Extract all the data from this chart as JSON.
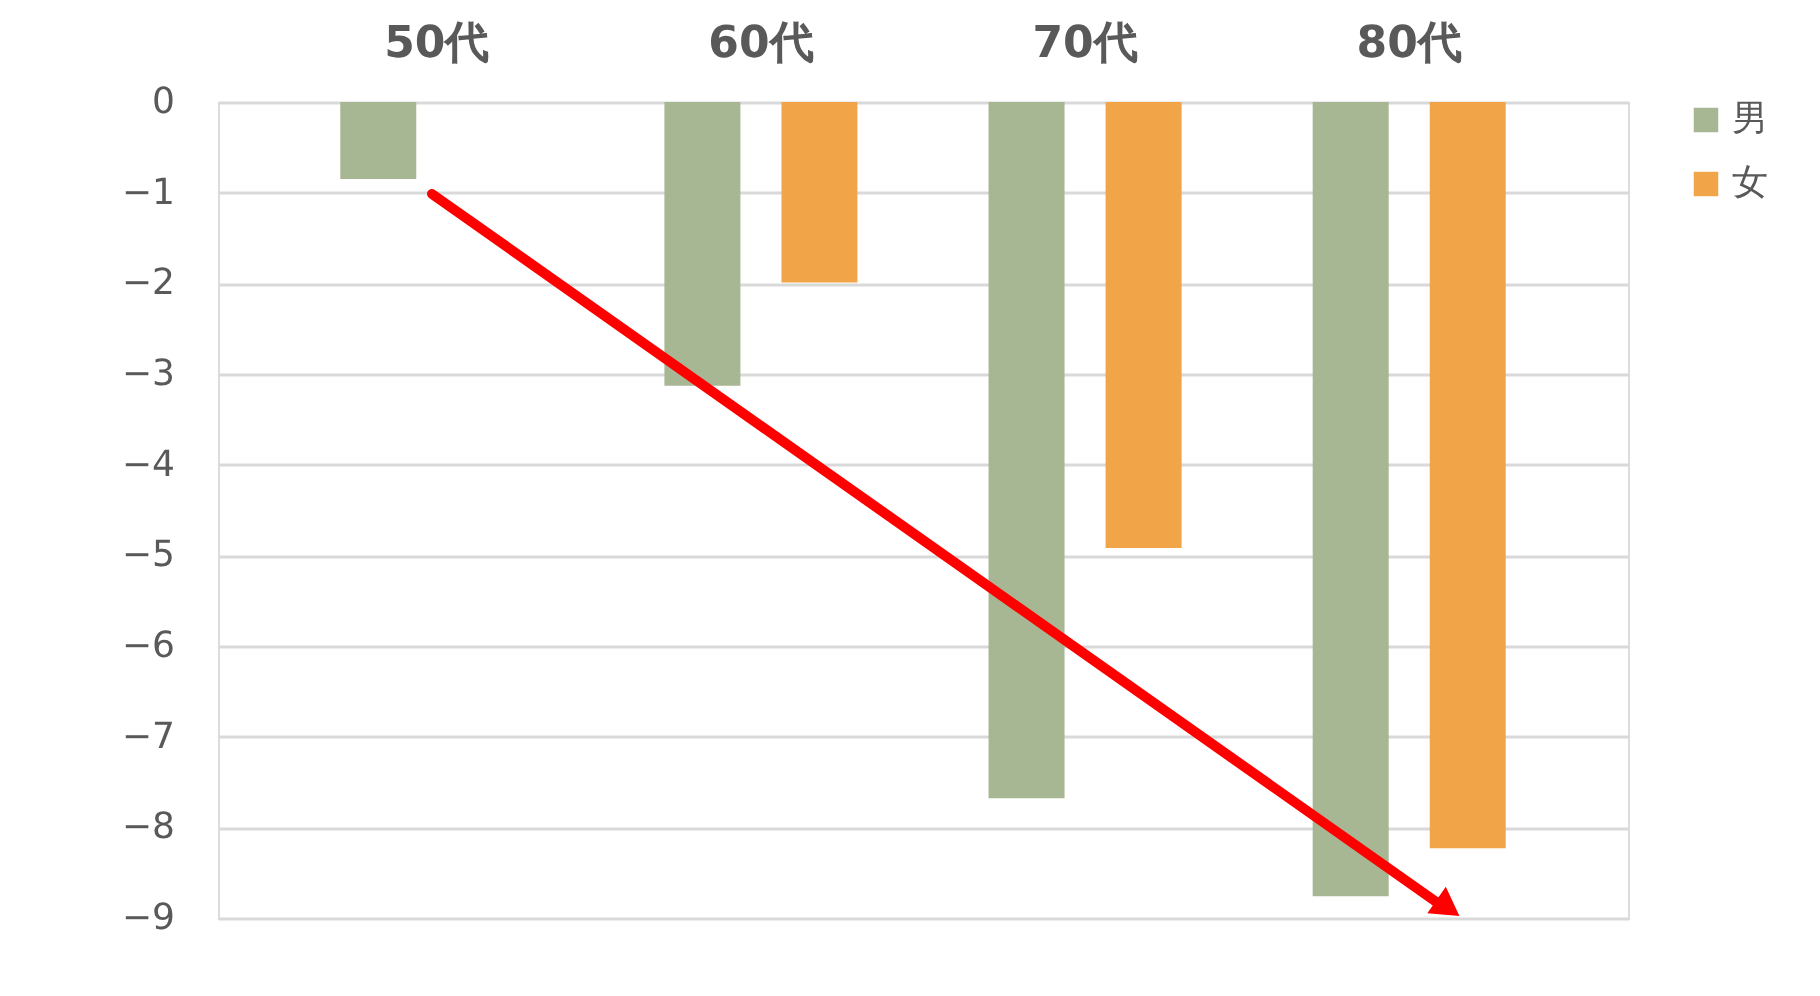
{
  "chart_data": {
    "type": "bar",
    "categories": [
      "50代",
      "60代",
      "70代",
      "80代"
    ],
    "series": [
      {
        "name": "男",
        "color": "#a7b693",
        "values": [
          -0.85,
          -3.13,
          -7.68,
          -8.76
        ]
      },
      {
        "name": "女",
        "color": "#f2a548",
        "values": [
          null,
          -1.99,
          -4.92,
          -8.23
        ]
      }
    ],
    "ylim": [
      -9,
      0
    ],
    "yticks": [
      0,
      -1,
      -2,
      -3,
      -4,
      -5,
      -6,
      -7,
      -8,
      -9
    ],
    "grid": "y",
    "legend": "right"
  }
}
